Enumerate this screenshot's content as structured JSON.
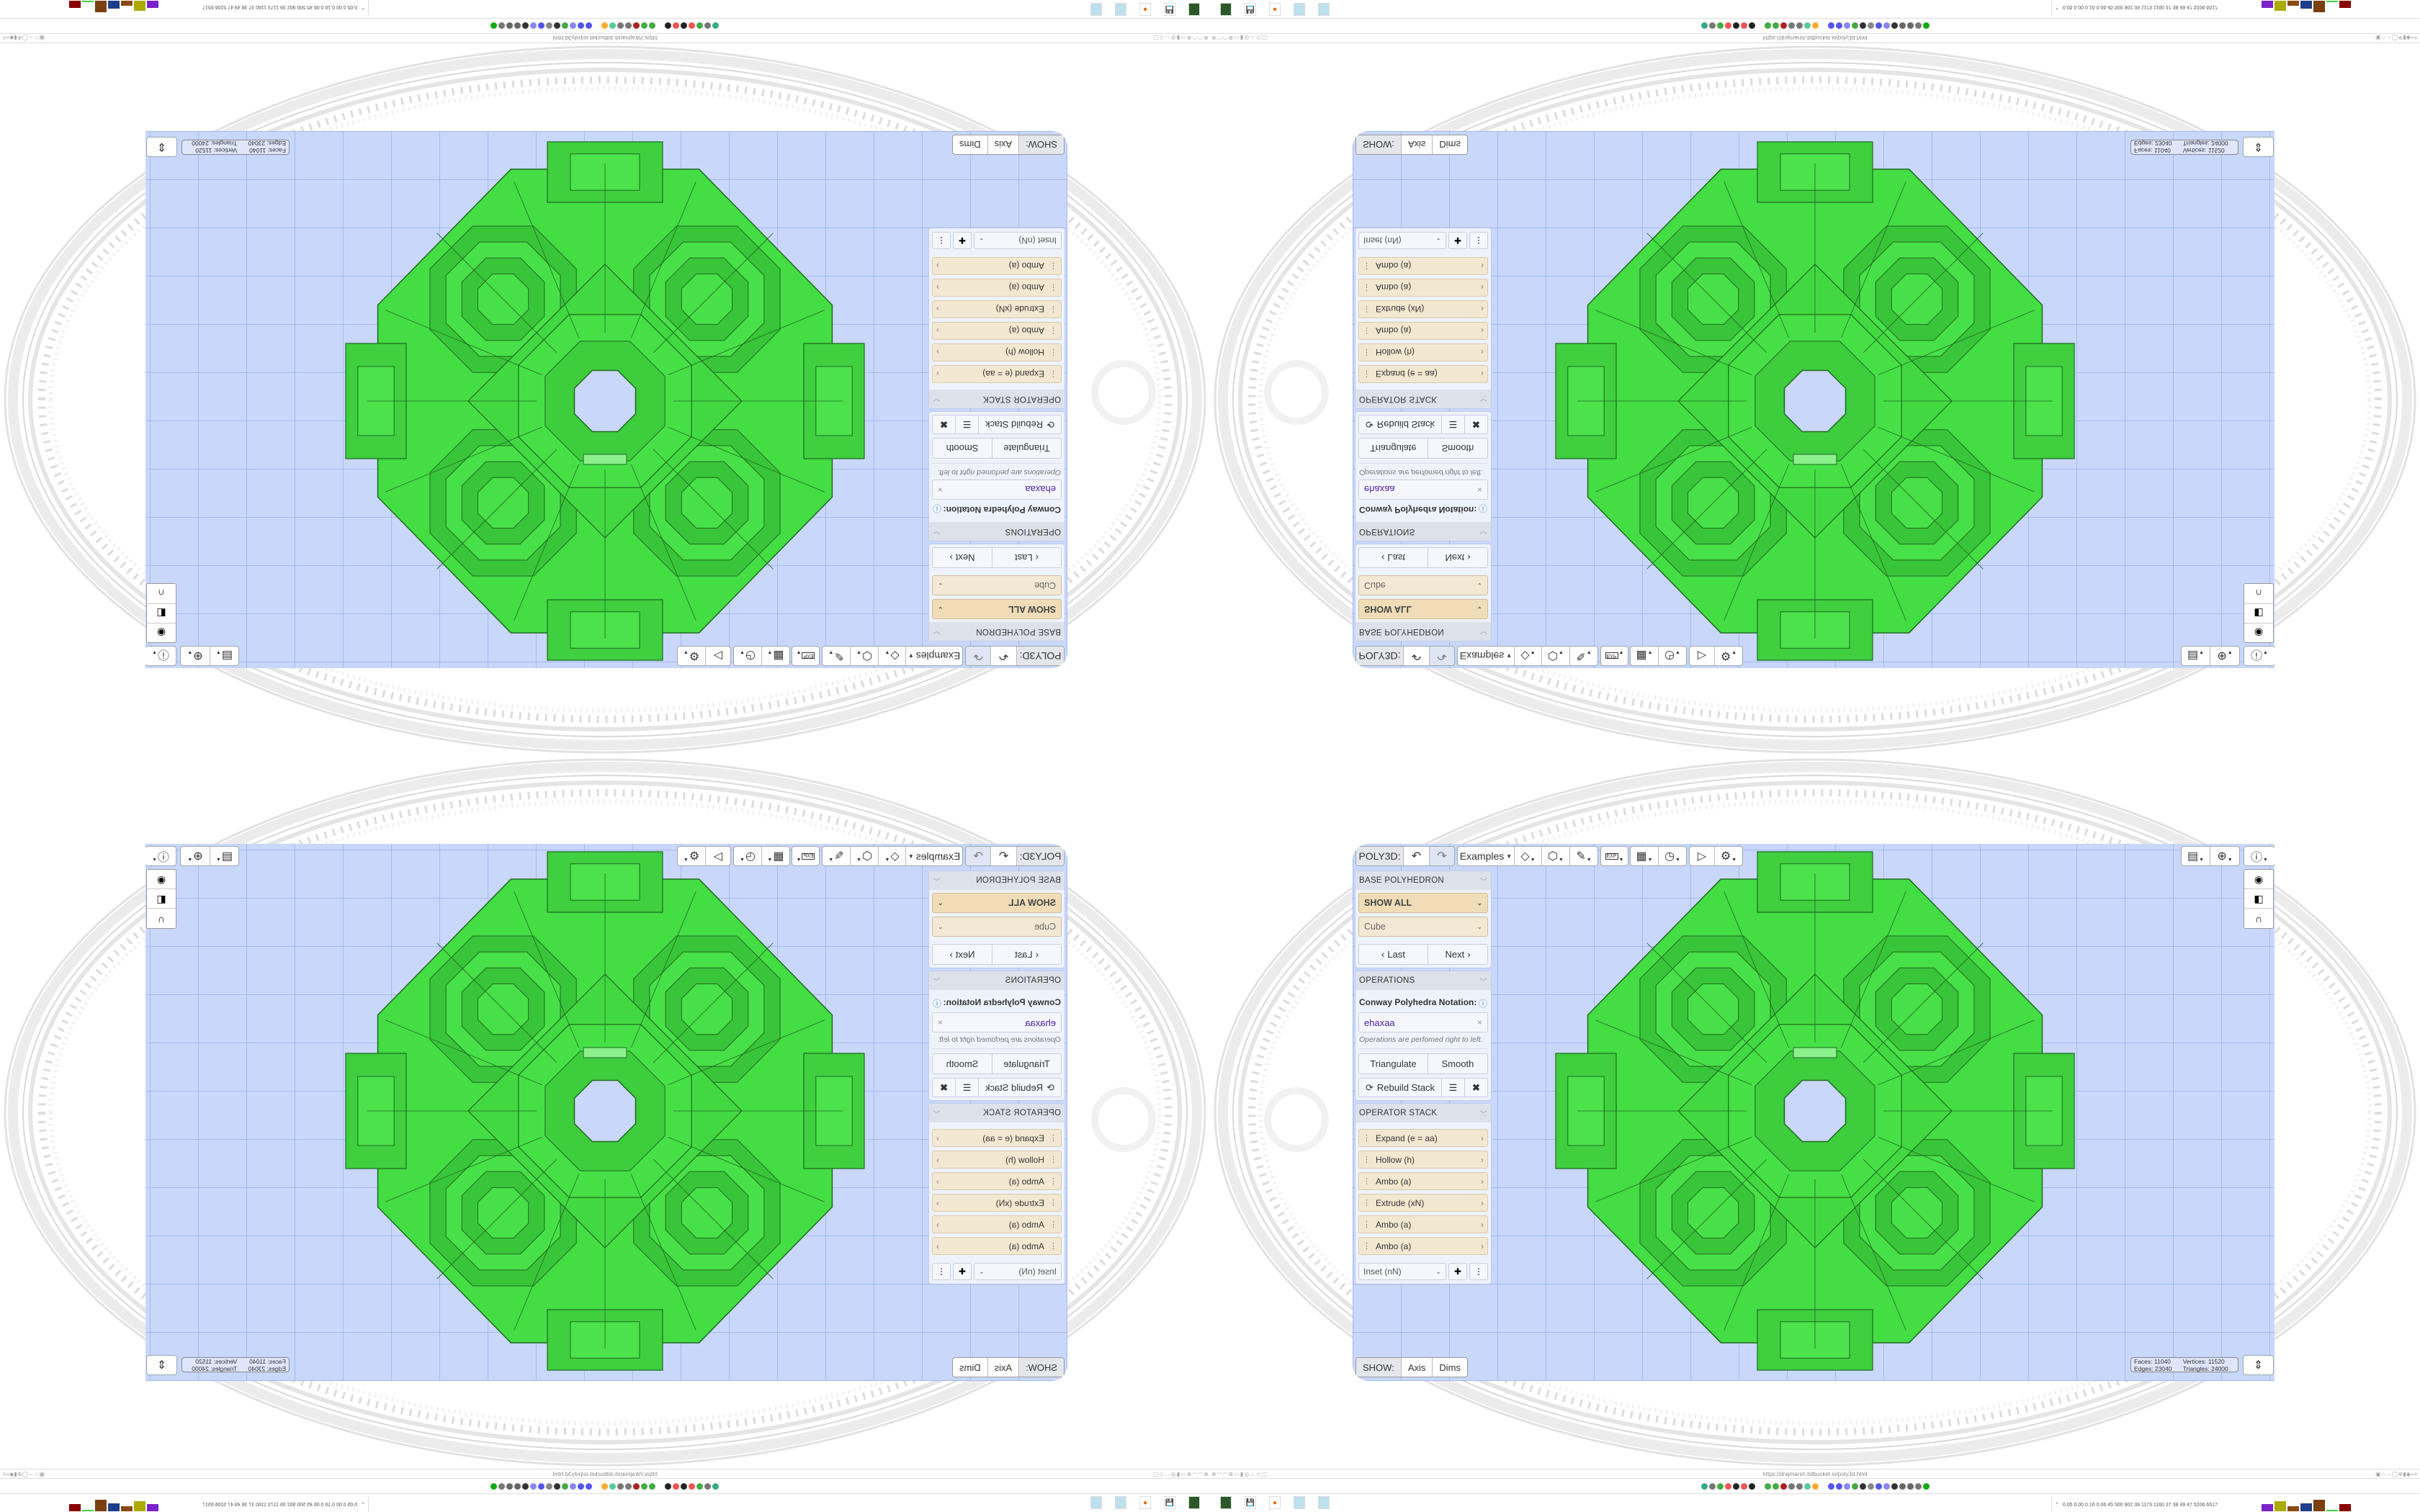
{
  "toolbar": {
    "title": "POLY3D:",
    "undo_icon": "undo-arrow-icon",
    "redo_icon": "redo-arrow-icon",
    "examples": "Examples",
    "tools": [
      "paint-bucket-icon",
      "cube-icon",
      "pencil-icon",
      "export-icon",
      "calendar-grid-icon",
      "clock-icon",
      "play-icon",
      "gear-icon"
    ],
    "export_label": "EXP",
    "right_tools": [
      "calendar-clock-icon",
      "globe-icon",
      "info-icon"
    ]
  },
  "base_polyhedron": {
    "header": "BASE POLYHEDRON",
    "group_select": "SHOW ALL",
    "shape_select": "Cube",
    "last": "Last",
    "next": "Next"
  },
  "operations": {
    "header": "OPERATIONS",
    "notation_label": "Conway Polyhedra Notation:",
    "notation_value": "ehaxaa",
    "help": "Operations are perfomed right to left.",
    "triangulate": "Triangulate",
    "smooth": "Smooth",
    "rebuild": "Rebuild Stack"
  },
  "operator_stack": {
    "header": "OPERATOR STACK",
    "items": [
      "Expand (e = aa)",
      "Hollow (h)",
      "Ambo (a)",
      "Extrude (xN)",
      "Ambo (a)",
      "Ambo (a)"
    ],
    "add_select": "Inset (nN)"
  },
  "show": {
    "label": "SHOW:",
    "axis": "Axis",
    "dims": "Dims"
  },
  "stats": {
    "faces_label": "Faces:",
    "faces": "11040",
    "vertices_label": "Vertices:",
    "vertices": "11520",
    "edges_label": "Edges:",
    "edges": "23040",
    "triangles_label": "Triangles:",
    "triangles": "24000"
  },
  "colors": {
    "viewport": "#c9d7fb",
    "model": "#44dd44",
    "model_edge": "#1f6a1f",
    "select": "#f0dcb6",
    "stack_item": "#f2e7d0"
  },
  "browser": {
    "url": "https://drajmarsh.bitbucket.io/poly3d.html",
    "tray_text": "0.05 0.00 0.16 0.06  45  500  902  39  1173 1160  37  38  49  47  5206 6517"
  }
}
